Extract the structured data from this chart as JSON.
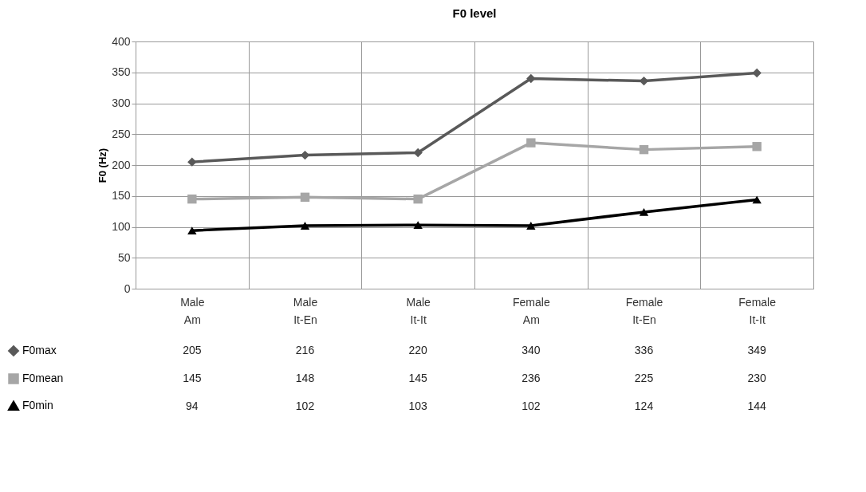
{
  "chart_data": {
    "type": "line",
    "title": "F0 level",
    "ylabel": "F0 (Hz)",
    "categories": [
      "Male Am",
      "Male It-En",
      "Male It-It",
      "Female Am",
      "Female It-En",
      "Female It-It"
    ],
    "series": [
      {
        "name": "F0max",
        "color": "#595959",
        "marker": "diamond",
        "values": [
          205,
          216,
          220,
          340,
          336,
          349
        ]
      },
      {
        "name": "F0mean",
        "color": "#a6a6a6",
        "marker": "square",
        "values": [
          145,
          148,
          145,
          236,
          225,
          230
        ]
      },
      {
        "name": "F0min",
        "color": "#000000",
        "marker": "triangle",
        "values": [
          94,
          102,
          103,
          102,
          124,
          144
        ]
      }
    ],
    "ylim": [
      0,
      400
    ],
    "yticks": [
      0,
      50,
      100,
      150,
      200,
      250,
      300,
      350,
      400
    ],
    "grid": "y",
    "line_style": "solid",
    "legend": "bottom left",
    "data_labels": true
  }
}
